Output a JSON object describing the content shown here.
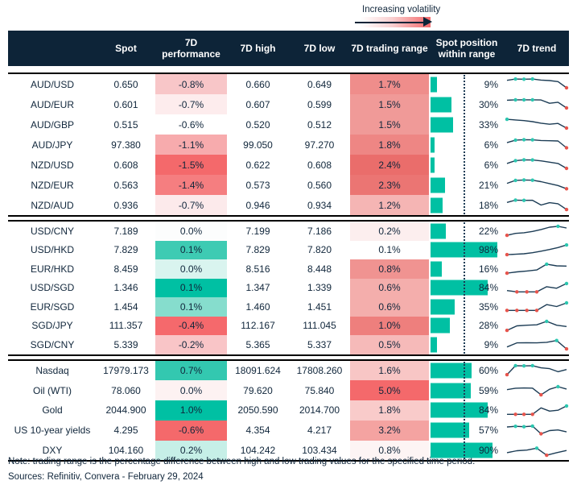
{
  "annotation": {
    "label": "Increasing volatility"
  },
  "colors": {
    "header_bg": "#0d2438",
    "teal": "#00c0a3",
    "red": "#f4696b",
    "bar": "#00c0a3",
    "dot_high": "#2cc7b0",
    "dot_low": "#e7544c",
    "spark_line": "#1c3c55"
  },
  "chart_data": {
    "type": "table",
    "columns": [
      "Spot",
      "7D performance",
      "7D high",
      "7D low",
      "7D trading range",
      "Spot position within range",
      "7D trend"
    ],
    "groups": [
      {
        "rows": [
          {
            "label": "AUD/USD",
            "spot": "0.650",
            "perf": "-0.8%",
            "perf_bg": "#f8c6c8",
            "high": "0.660",
            "low": "0.649",
            "range": "1.7%",
            "range_bg": "#ef8d8b",
            "pos": "9%",
            "pos_pct": 9,
            "spark_v": [
              80,
              90,
              89,
              90,
              82,
              78,
              70,
              22
            ],
            "spark_d": [
              "",
              "t",
              "t",
              "t",
              "",
              "",
              "",
              "r"
            ]
          },
          {
            "label": "AUD/EUR",
            "spot": "0.601",
            "perf": "-0.7%",
            "perf_bg": "#fdeced",
            "high": "0.607",
            "low": "0.599",
            "range": "1.5%",
            "range_bg": "#f09a98",
            "pos": "30%",
            "pos_pct": 30,
            "spark_v": [
              82,
              85,
              85,
              85,
              84,
              58,
              66,
              22
            ],
            "spark_d": [
              "",
              "t",
              "t",
              "t",
              "",
              "",
              "",
              "r"
            ]
          },
          {
            "label": "AUD/GBP",
            "spot": "0.515",
            "perf": "-0.6%",
            "perf_bg": "#ffffff",
            "high": "0.520",
            "low": "0.512",
            "range": "1.5%",
            "range_bg": "#f09a98",
            "pos": "33%",
            "pos_pct": 33,
            "spark_v": [
              90,
              85,
              80,
              72,
              60,
              52,
              58,
              22
            ],
            "spark_d": [
              "t",
              "",
              "",
              "",
              "",
              "",
              "",
              "r"
            ]
          },
          {
            "label": "AUD/JPY",
            "spot": "97.380",
            "perf": "-1.1%",
            "perf_bg": "#f7abad",
            "high": "99.050",
            "low": "97.270",
            "range": "1.8%",
            "range_bg": "#ee8684",
            "pos": "6%",
            "pos_pct": 6,
            "spark_v": [
              65,
              85,
              88,
              87,
              82,
              80,
              78,
              25
            ],
            "spark_d": [
              "",
              "t",
              "t",
              "t",
              "",
              "",
              "",
              "r"
            ]
          },
          {
            "label": "NZD/USD",
            "spot": "0.608",
            "perf": "-1.5%",
            "perf_bg": "#f4696b",
            "high": "0.622",
            "low": "0.608",
            "range": "2.4%",
            "range_bg": "#ea6d6b",
            "pos": "6%",
            "pos_pct": 6,
            "spark_v": [
              60,
              82,
              88,
              87,
              80,
              70,
              60,
              22
            ],
            "spark_d": [
              "",
              "t",
              "t",
              "t",
              "",
              "",
              "",
              "r"
            ]
          },
          {
            "label": "NZD/EUR",
            "spot": "0.563",
            "perf": "-1.4%",
            "perf_bg": "#f57e80",
            "high": "0.573",
            "low": "0.560",
            "range": "2.3%",
            "range_bg": "#eb7573",
            "pos": "21%",
            "pos_pct": 21,
            "spark_v": [
              62,
              85,
              88,
              86,
              75,
              60,
              45,
              20
            ],
            "spark_d": [
              "",
              "t",
              "t",
              "t",
              "",
              "",
              "",
              "r"
            ]
          },
          {
            "label": "NZD/AUD",
            "spot": "0.936",
            "perf": "-0.7%",
            "perf_bg": "#fceaeb",
            "high": "0.946",
            "low": "0.934",
            "range": "1.2%",
            "range_bg": "#f5b5b4",
            "pos": "18%",
            "pos_pct": 18,
            "spark_v": [
              70,
              88,
              86,
              87,
              50,
              68,
              60,
              15
            ],
            "spark_d": [
              "",
              "t",
              "t",
              "",
              "",
              "",
              "",
              "r"
            ]
          }
        ]
      },
      {
        "rows": [
          {
            "label": "USD/CNY",
            "spot": "7.189",
            "perf": "0.0%",
            "perf_bg": "#fcfdfd",
            "high": "7.199",
            "low": "7.186",
            "range": "0.2%",
            "range_bg": "#fceeee",
            "pos": "22%",
            "pos_pct": 22,
            "spark_v": [
              15,
              30,
              35,
              45,
              60,
              78,
              85,
              72
            ],
            "spark_d": [
              "r",
              "",
              "",
              "",
              "",
              "",
              "t",
              ""
            ]
          },
          {
            "label": "USD/HKD",
            "spot": "7.829",
            "perf": "0.1%",
            "perf_bg": "#3ecbb3",
            "high": "7.829",
            "low": "7.820",
            "range": "0.1%",
            "range_bg": "#ffffff",
            "pos": "98%",
            "pos_pct": 98,
            "spark_v": [
              15,
              18,
              22,
              30,
              42,
              55,
              70,
              90
            ],
            "spark_d": [
              "r",
              "",
              "",
              "",
              "",
              "",
              "",
              "t"
            ]
          },
          {
            "label": "EUR/HKD",
            "spot": "8.459",
            "perf": "0.0%",
            "perf_bg": "#d9f4ef",
            "high": "8.516",
            "low": "8.448",
            "range": "0.8%",
            "range_bg": "#f09391",
            "pos": "16%",
            "pos_pct": 16,
            "spark_v": [
              15,
              25,
              32,
              40,
              85,
              72,
              70
            ],
            "spark_d": [
              "r",
              "",
              "",
              "",
              "t",
              "",
              ""
            ]
          },
          {
            "label": "USD/SGD",
            "spot": "1.346",
            "perf": "0.1%",
            "perf_bg": "#00c0a3",
            "high": "1.347",
            "low": "1.339",
            "range": "0.6%",
            "range_bg": "#f4aeac",
            "pos": "84%",
            "pos_pct": 84,
            "spark_v": [
              30,
              20,
              20,
              20,
              60,
              48,
              85
            ],
            "spark_d": [
              "",
              "r",
              "r",
              "r",
              "",
              "",
              "t"
            ]
          },
          {
            "label": "EUR/SGD",
            "spot": "1.454",
            "perf": "0.1%",
            "perf_bg": "#86ddcd",
            "high": "1.460",
            "low": "1.451",
            "range": "0.6%",
            "range_bg": "#f4aeac",
            "pos": "35%",
            "pos_pct": 35,
            "spark_v": [
              20,
              20,
              20,
              20,
              65,
              50,
              78
            ],
            "spark_d": [
              "r",
              "r",
              "r",
              "r",
              "",
              "",
              "t"
            ]
          },
          {
            "label": "SGD/JPY",
            "spot": "111.357",
            "perf": "-0.4%",
            "perf_bg": "#f5696c",
            "high": "112.167",
            "low": "111.045",
            "range": "1.0%",
            "range_bg": "#ee7f7d",
            "pos": "28%",
            "pos_pct": 28,
            "spark_v": [
              15,
              50,
              55,
              58,
              85,
              55,
              45
            ],
            "spark_d": [
              "r",
              "",
              "",
              "",
              "t",
              "",
              ""
            ]
          },
          {
            "label": "SGD/CNY",
            "spot": "5.339",
            "perf": "-0.2%",
            "perf_bg": "#f9c5c7",
            "high": "5.365",
            "low": "5.337",
            "range": "0.5%",
            "range_bg": "#f6bab9",
            "pos": "9%",
            "pos_pct": 9,
            "spark_v": [
              30,
              62,
              63,
              62,
              66,
              80,
              15
            ],
            "spark_d": [
              "",
              "",
              "",
              "",
              "",
              "t",
              "r"
            ]
          }
        ]
      },
      {
        "rows": [
          {
            "label": "Nasdaq",
            "spot": "17979.173",
            "perf": "0.7%",
            "perf_bg": "#33c8b0",
            "high": "18091.624",
            "low": "17808.260",
            "range": "1.6%",
            "range_bg": "#f8c6c5",
            "pos": "60%",
            "pos_pct": 60,
            "spark_v": [
              15,
              85,
              83,
              85,
              68,
              62,
              38,
              55
            ],
            "spark_d": [
              "r",
              "t",
              "t",
              "t",
              "",
              "",
              "",
              ""
            ]
          },
          {
            "label": "Oil (WTI)",
            "spot": "78.060",
            "perf": "0.0%",
            "perf_bg": "#fdf2f2",
            "high": "79.620",
            "low": "75.840",
            "range": "5.0%",
            "range_bg": "#f4696b",
            "pos": "59%",
            "pos_pct": 59,
            "spark_v": [
              55,
              66,
              68,
              67,
              15,
              58,
              78,
              60
            ],
            "spark_d": [
              "",
              "",
              "",
              "",
              "r",
              "",
              "t",
              ""
            ]
          },
          {
            "label": "Gold",
            "spot": "2044.900",
            "perf": "1.0%",
            "perf_bg": "#00c0a3",
            "high": "2050.590",
            "low": "2014.700",
            "range": "1.8%",
            "range_bg": "#f9cbca",
            "pos": "84%",
            "pos_pct": 84,
            "spark_v": [
              20,
              20,
              20,
              20,
              70,
              45,
              52,
              85
            ],
            "spark_d": [
              "",
              "r",
              "r",
              "r",
              "",
              "",
              "",
              "t"
            ]
          },
          {
            "label": "US 10-year yields",
            "spot": "4.295",
            "perf": "-0.6%",
            "perf_bg": "#f4696b",
            "high": "4.354",
            "low": "4.217",
            "range": "3.2%",
            "range_bg": "#f4a3a1",
            "pos": "57%",
            "pos_pct": 57,
            "spark_v": [
              78,
              83,
              80,
              85,
              25,
              50,
              55,
              40
            ],
            "spark_d": [
              "",
              "t",
              "t",
              "t",
              "r",
              "",
              "",
              ""
            ]
          },
          {
            "label": "DXY",
            "spot": "104.160",
            "perf": "0.2%",
            "perf_bg": "#c6efe7",
            "high": "104.242",
            "low": "103.434",
            "range": "0.8%",
            "range_bg": "#fdf4f4",
            "pos": "90%",
            "pos_pct": 90,
            "spark_v": [
              35,
              50,
              55,
              70,
              15,
              35,
              52
            ],
            "spark_d": [
              "",
              "",
              "",
              "t",
              "r",
              "",
              ""
            ]
          }
        ]
      }
    ]
  },
  "footer": {
    "note": "Note: trading range is the percentage difference between high and low trading values for the specified time period.",
    "sources": "Sources: Refinitiv, Convera - February 29, 2024"
  }
}
